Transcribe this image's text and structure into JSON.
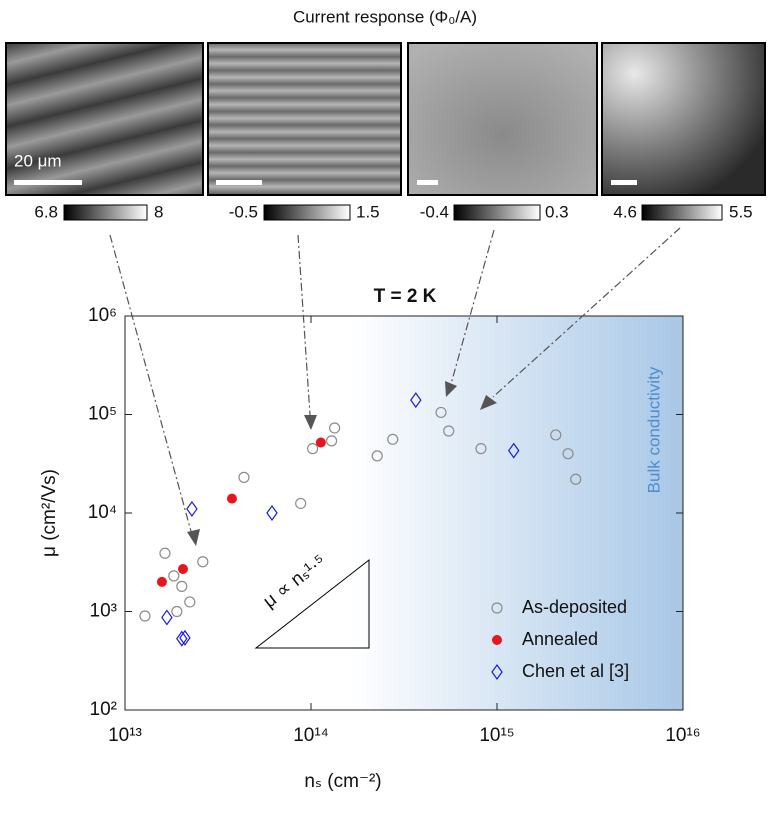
{
  "header_title": "Current response (Φ₀/A)",
  "panels": [
    {
      "colorbar_min": "6.8",
      "colorbar_max": "8",
      "scale_label": "20 μm"
    },
    {
      "colorbar_min": "-0.5",
      "colorbar_max": "1.5"
    },
    {
      "colorbar_min": "-0.4",
      "colorbar_max": "0.3"
    },
    {
      "colorbar_min": "4.6",
      "colorbar_max": "5.5"
    }
  ],
  "chart_data": {
    "type": "scatter",
    "title": "T = 2 K",
    "x_label": "nₛ (cm⁻²)",
    "y_label": "μ (cm²/Vs)",
    "x_log": true,
    "y_log": true,
    "grid": false,
    "legend": "lower right",
    "region_label": "Bulk conductivity",
    "annotation": "μ ∝ nₛ¹·⁵",
    "xlim": [
      10000000000000.0,
      1e+16
    ],
    "ylim": [
      100,
      1000000
    ],
    "xticks": [
      {
        "value": 10000000000000.0,
        "label": "10¹³"
      },
      {
        "value": 100000000000000.0,
        "label": "10¹⁴"
      },
      {
        "value": 1000000000000000.0,
        "label": "10¹⁵"
      },
      {
        "value": 1e+16,
        "label": "10¹⁶"
      }
    ],
    "yticks": [
      {
        "value": 100,
        "label": "10²"
      },
      {
        "value": 1000,
        "label": "10³"
      },
      {
        "value": 10000,
        "label": "10⁴"
      },
      {
        "value": 100000,
        "label": "10⁵"
      },
      {
        "value": 1000000,
        "label": "10⁶"
      }
    ],
    "series": [
      {
        "name": "As-deposited",
        "color": "#8c8c8c",
        "marker": "circle",
        "x": [
          12800000000000.0,
          16400000000000.0,
          18300000000000.0,
          19000000000000.0,
          20200000000000.0,
          22300000000000.0,
          26200000000000.0,
          43600000000000.0,
          88000000000000.0,
          102000000000000.0,
          129000000000000.0,
          134000000000000.0,
          227000000000000.0,
          275000000000000.0,
          500000000000000.0,
          550000000000000.0,
          820000000000000.0,
          2070000000000000.0,
          2410000000000000.0,
          2650000000000000.0
        ],
        "values": [
          900,
          3900,
          2300,
          1000,
          1800,
          1250,
          3200,
          23000,
          12500,
          45000,
          54000,
          73000,
          38000,
          56000,
          105000,
          68000,
          45000,
          62000,
          40000,
          22000
        ]
      },
      {
        "name": "Annealed",
        "color": "#e8141e",
        "marker": "dot",
        "x": [
          15800000000000.0,
          20500000000000.0,
          37600000000000.0,
          113000000000000.0
        ],
        "values": [
          2000,
          2700,
          14000,
          52000
        ]
      },
      {
        "name": "Chen et al [3]",
        "color": "#1c1ce0",
        "marker": "diamond",
        "x": [
          22900000000000.0,
          16800000000000.0,
          20200000000000.0,
          21000000000000.0,
          61700000000000.0,
          366000000000000.0,
          1230000000000000.0
        ],
        "values": [
          11000,
          870,
          530,
          540,
          10000,
          140000,
          43000
        ]
      }
    ]
  }
}
